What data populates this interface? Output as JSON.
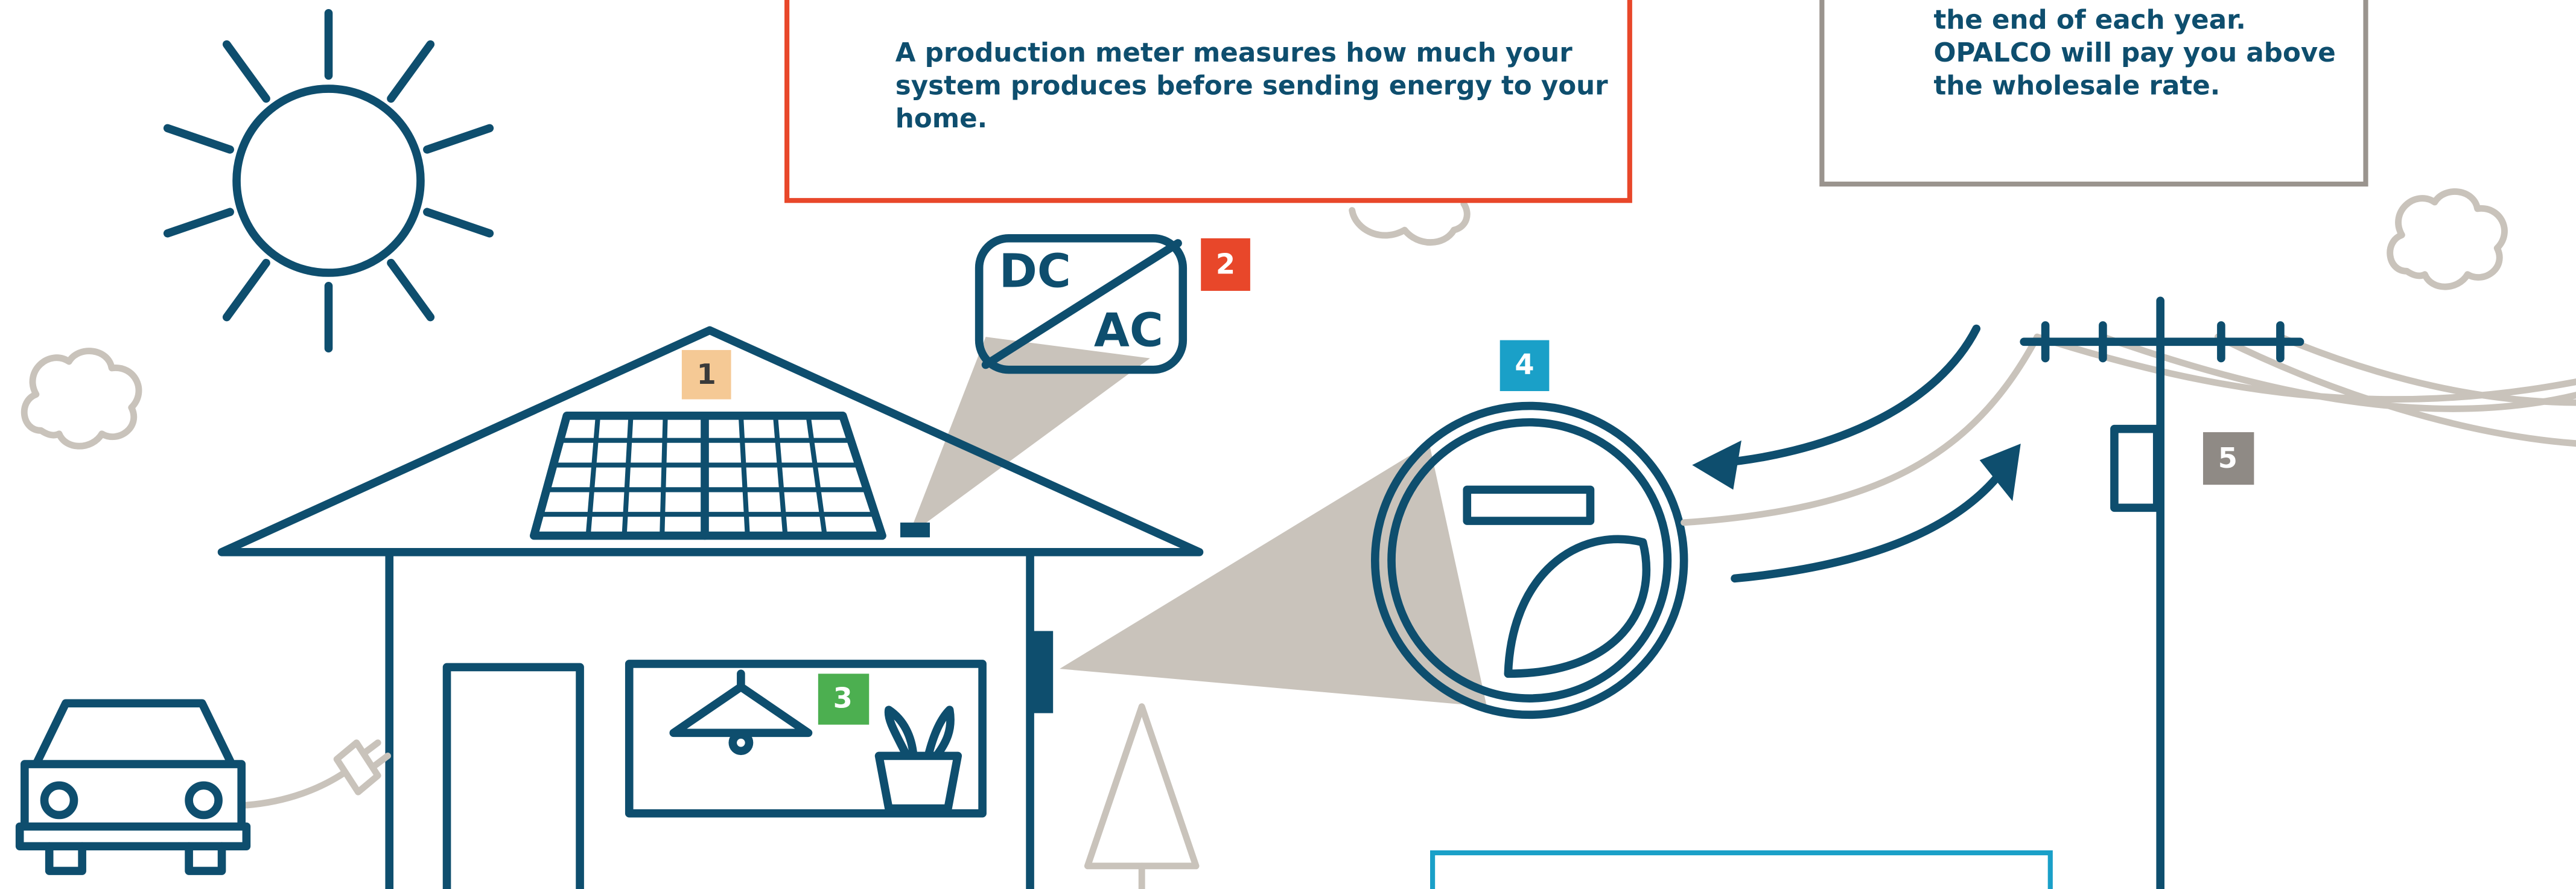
{
  "callouts": [
    {
      "number": "1"
    },
    {
      "number": "2"
    },
    {
      "number": "3"
    },
    {
      "number": "4"
    },
    {
      "number": "5"
    }
  ],
  "inverter": {
    "top": "DC",
    "bottom": "AC"
  },
  "boxes": [
    {
      "lines": [
        "A production meter measures how much your",
        "system produces before sending energy to your",
        "home."
      ]
    },
    {
      "lines": [
        "the end of each year.",
        "OPALCO will pay you above",
        "the wholesale rate."
      ]
    }
  ]
}
